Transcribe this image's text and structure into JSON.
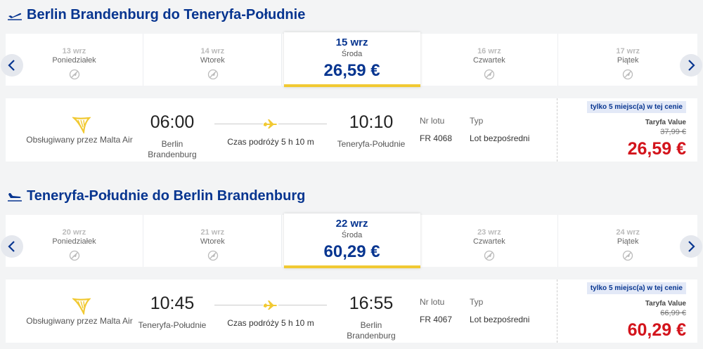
{
  "flights": [
    {
      "title": "Berlin Brandenburg do Teneryfa-Południe",
      "dates": [
        {
          "date": "13 wrz",
          "day": "Poniedziałek"
        },
        {
          "date": "14 wrz",
          "day": "Wtorek"
        },
        {
          "date": "15 wrz",
          "day": "Środa",
          "price": "26,59 €"
        },
        {
          "date": "16 wrz",
          "day": "Czwartek"
        },
        {
          "date": "17 wrz",
          "day": "Piątek"
        }
      ],
      "card": {
        "operator": "Obsługiwany przez Malta Air",
        "dep_time": "06:00",
        "dep_airport": "Berlin Brandenburg",
        "duration": "Czas podróży 5 h 10 m",
        "arr_time": "10:10",
        "arr_airport": "Teneryfa-Południe",
        "flight_no_label": "Nr lotu",
        "flight_no": "FR 4068",
        "type_label": "Typ",
        "type": "Lot bezpośredni",
        "badge": "tylko 5 miejsc(a) w tej cenie",
        "fare": "Taryfa Value",
        "old_price": "37,99 €",
        "price": "26,59 €"
      }
    },
    {
      "title": "Teneryfa-Południe do Berlin Brandenburg",
      "dates": [
        {
          "date": "20 wrz",
          "day": "Poniedziałek"
        },
        {
          "date": "21 wrz",
          "day": "Wtorek"
        },
        {
          "date": "22 wrz",
          "day": "Środa",
          "price": "60,29 €"
        },
        {
          "date": "23 wrz",
          "day": "Czwartek"
        },
        {
          "date": "24 wrz",
          "day": "Piątek"
        }
      ],
      "card": {
        "operator": "Obsługiwany przez Malta Air",
        "dep_time": "10:45",
        "dep_airport": "Teneryfa-Południe",
        "duration": "Czas podróży 5 h 10 m",
        "arr_time": "16:55",
        "arr_airport": "Berlin Brandenburg",
        "flight_no_label": "Nr lotu",
        "flight_no": "FR 4067",
        "type_label": "Typ",
        "type": "Lot bezpośredni",
        "badge": "tylko 5 miejsc(a) w tej cenie",
        "fare": "Taryfa Value",
        "old_price": "66,99 €",
        "price": "60,29 €"
      }
    }
  ]
}
